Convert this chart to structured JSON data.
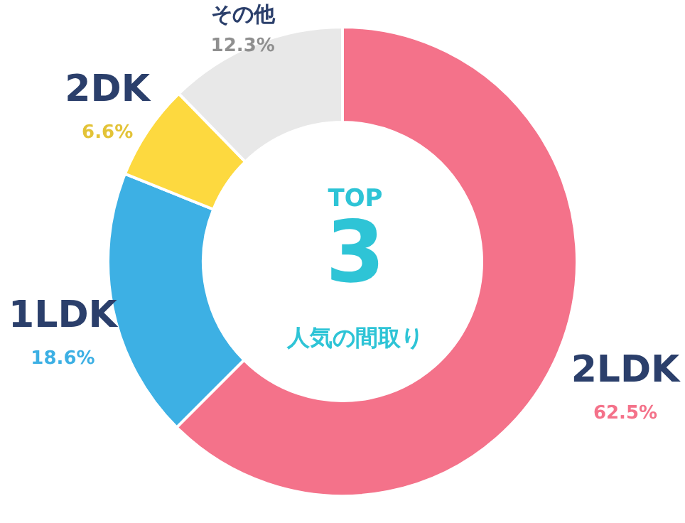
{
  "chart_data": {
    "type": "donut",
    "categories": [
      "2LDK",
      "1LDK",
      "2DK",
      "その他"
    ],
    "values": [
      62.5,
      18.6,
      6.6,
      12.3
    ],
    "value_labels": [
      "62.5%",
      "18.6%",
      "6.6%",
      "12.3%"
    ],
    "colors": [
      "#f4728a",
      "#3db0e4",
      "#fdd93f",
      "#e8e8e8"
    ],
    "annotations": [
      "TOP",
      "3",
      "人気の間取り"
    ]
  }
}
